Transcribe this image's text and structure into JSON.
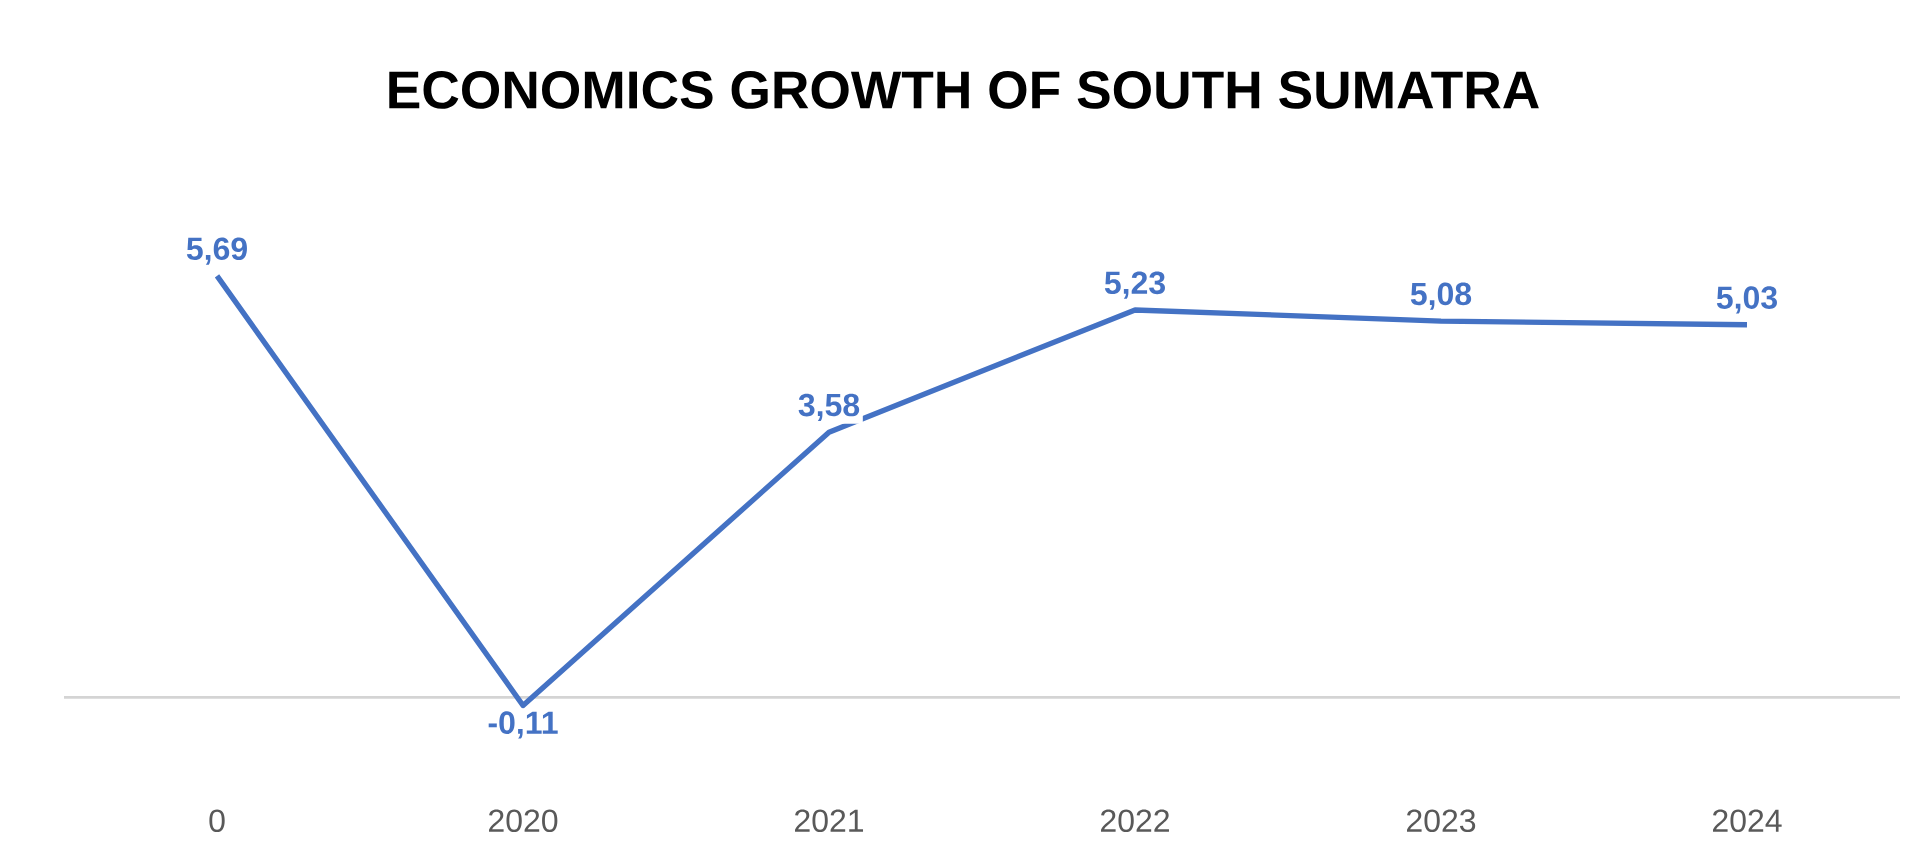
{
  "chart_data": {
    "type": "line",
    "title": "ECONOMICS GROWTH OF SOUTH SUMATRA",
    "categories": [
      "0",
      "2020",
      "2021",
      "2022",
      "2023",
      "2024"
    ],
    "values": [
      5.69,
      -0.11,
      3.58,
      5.23,
      5.08,
      5.03
    ],
    "value_labels": [
      "5,69",
      "-0,11",
      "3,58",
      "5,23",
      "5,08",
      "5,03"
    ],
    "color": "#4472c4",
    "marker": "none"
  }
}
